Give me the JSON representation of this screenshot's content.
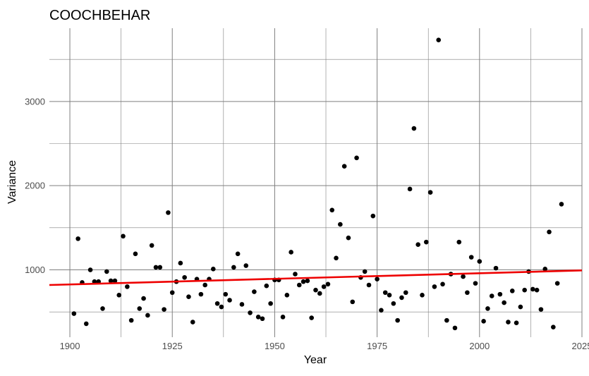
{
  "chart_data": {
    "type": "scatter",
    "title": "COOCHBEHAR",
    "xlabel": "Year",
    "ylabel": "Variance",
    "xlim": [
      1895,
      2025
    ],
    "ylim": [
      200,
      3870
    ],
    "x_ticks": [
      1900,
      1925,
      1950,
      1975,
      2000,
      2025
    ],
    "y_ticks": [
      1000,
      2000,
      3000
    ],
    "grid": true,
    "colors": {
      "points": "#000000",
      "trend": "#ee0000",
      "grid": "#7f7f7f"
    },
    "trend": {
      "x": [
        1895,
        2025
      ],
      "y": [
        820,
        993
      ]
    },
    "points": [
      [
        1901,
        480
      ],
      [
        1902,
        1370
      ],
      [
        1903,
        850
      ],
      [
        1904,
        360
      ],
      [
        1905,
        1000
      ],
      [
        1906,
        860
      ],
      [
        1907,
        860
      ],
      [
        1908,
        540
      ],
      [
        1909,
        980
      ],
      [
        1910,
        870
      ],
      [
        1911,
        870
      ],
      [
        1912,
        700
      ],
      [
        1913,
        1400
      ],
      [
        1914,
        800
      ],
      [
        1915,
        400
      ],
      [
        1916,
        1190
      ],
      [
        1917,
        540
      ],
      [
        1918,
        660
      ],
      [
        1919,
        460
      ],
      [
        1920,
        1290
      ],
      [
        1921,
        1030
      ],
      [
        1922,
        1030
      ],
      [
        1923,
        530
      ],
      [
        1924,
        1680
      ],
      [
        1925,
        730
      ],
      [
        1926,
        860
      ],
      [
        1927,
        1080
      ],
      [
        1928,
        910
      ],
      [
        1929,
        680
      ],
      [
        1930,
        380
      ],
      [
        1931,
        890
      ],
      [
        1932,
        710
      ],
      [
        1933,
        820
      ],
      [
        1934,
        890
      ],
      [
        1935,
        1010
      ],
      [
        1936,
        600
      ],
      [
        1937,
        560
      ],
      [
        1938,
        710
      ],
      [
        1939,
        640
      ],
      [
        1940,
        1030
      ],
      [
        1941,
        1190
      ],
      [
        1942,
        590
      ],
      [
        1943,
        1050
      ],
      [
        1944,
        490
      ],
      [
        1945,
        740
      ],
      [
        1946,
        440
      ],
      [
        1947,
        420
      ],
      [
        1948,
        810
      ],
      [
        1949,
        600
      ],
      [
        1950,
        880
      ],
      [
        1951,
        880
      ],
      [
        1952,
        440
      ],
      [
        1953,
        700
      ],
      [
        1954,
        1210
      ],
      [
        1955,
        950
      ],
      [
        1956,
        820
      ],
      [
        1957,
        860
      ],
      [
        1958,
        870
      ],
      [
        1959,
        430
      ],
      [
        1960,
        760
      ],
      [
        1961,
        720
      ],
      [
        1962,
        800
      ],
      [
        1963,
        830
      ],
      [
        1964,
        1710
      ],
      [
        1965,
        1140
      ],
      [
        1966,
        1540
      ],
      [
        1967,
        2230
      ],
      [
        1968,
        1380
      ],
      [
        1969,
        620
      ],
      [
        1970,
        2330
      ],
      [
        1971,
        910
      ],
      [
        1972,
        980
      ],
      [
        1973,
        820
      ],
      [
        1974,
        1640
      ],
      [
        1975,
        890
      ],
      [
        1976,
        520
      ],
      [
        1977,
        730
      ],
      [
        1978,
        700
      ],
      [
        1979,
        600
      ],
      [
        1980,
        400
      ],
      [
        1981,
        670
      ],
      [
        1982,
        730
      ],
      [
        1983,
        1960
      ],
      [
        1984,
        2680
      ],
      [
        1985,
        1300
      ],
      [
        1986,
        700
      ],
      [
        1987,
        1330
      ],
      [
        1988,
        1920
      ],
      [
        1989,
        800
      ],
      [
        1990,
        3730
      ],
      [
        1991,
        830
      ],
      [
        1992,
        400
      ],
      [
        1993,
        950
      ],
      [
        1994,
        310
      ],
      [
        1995,
        1330
      ],
      [
        1996,
        920
      ],
      [
        1997,
        730
      ],
      [
        1998,
        1150
      ],
      [
        1999,
        840
      ],
      [
        2000,
        1100
      ],
      [
        2001,
        390
      ],
      [
        2002,
        540
      ],
      [
        2003,
        690
      ],
      [
        2004,
        1020
      ],
      [
        2005,
        710
      ],
      [
        2006,
        610
      ],
      [
        2007,
        380
      ],
      [
        2008,
        750
      ],
      [
        2009,
        370
      ],
      [
        2010,
        560
      ],
      [
        2011,
        760
      ],
      [
        2012,
        980
      ],
      [
        2013,
        770
      ],
      [
        2014,
        760
      ],
      [
        2015,
        530
      ],
      [
        2016,
        1010
      ],
      [
        2017,
        1450
      ],
      [
        2018,
        320
      ],
      [
        2019,
        840
      ],
      [
        2020,
        1780
      ]
    ]
  }
}
